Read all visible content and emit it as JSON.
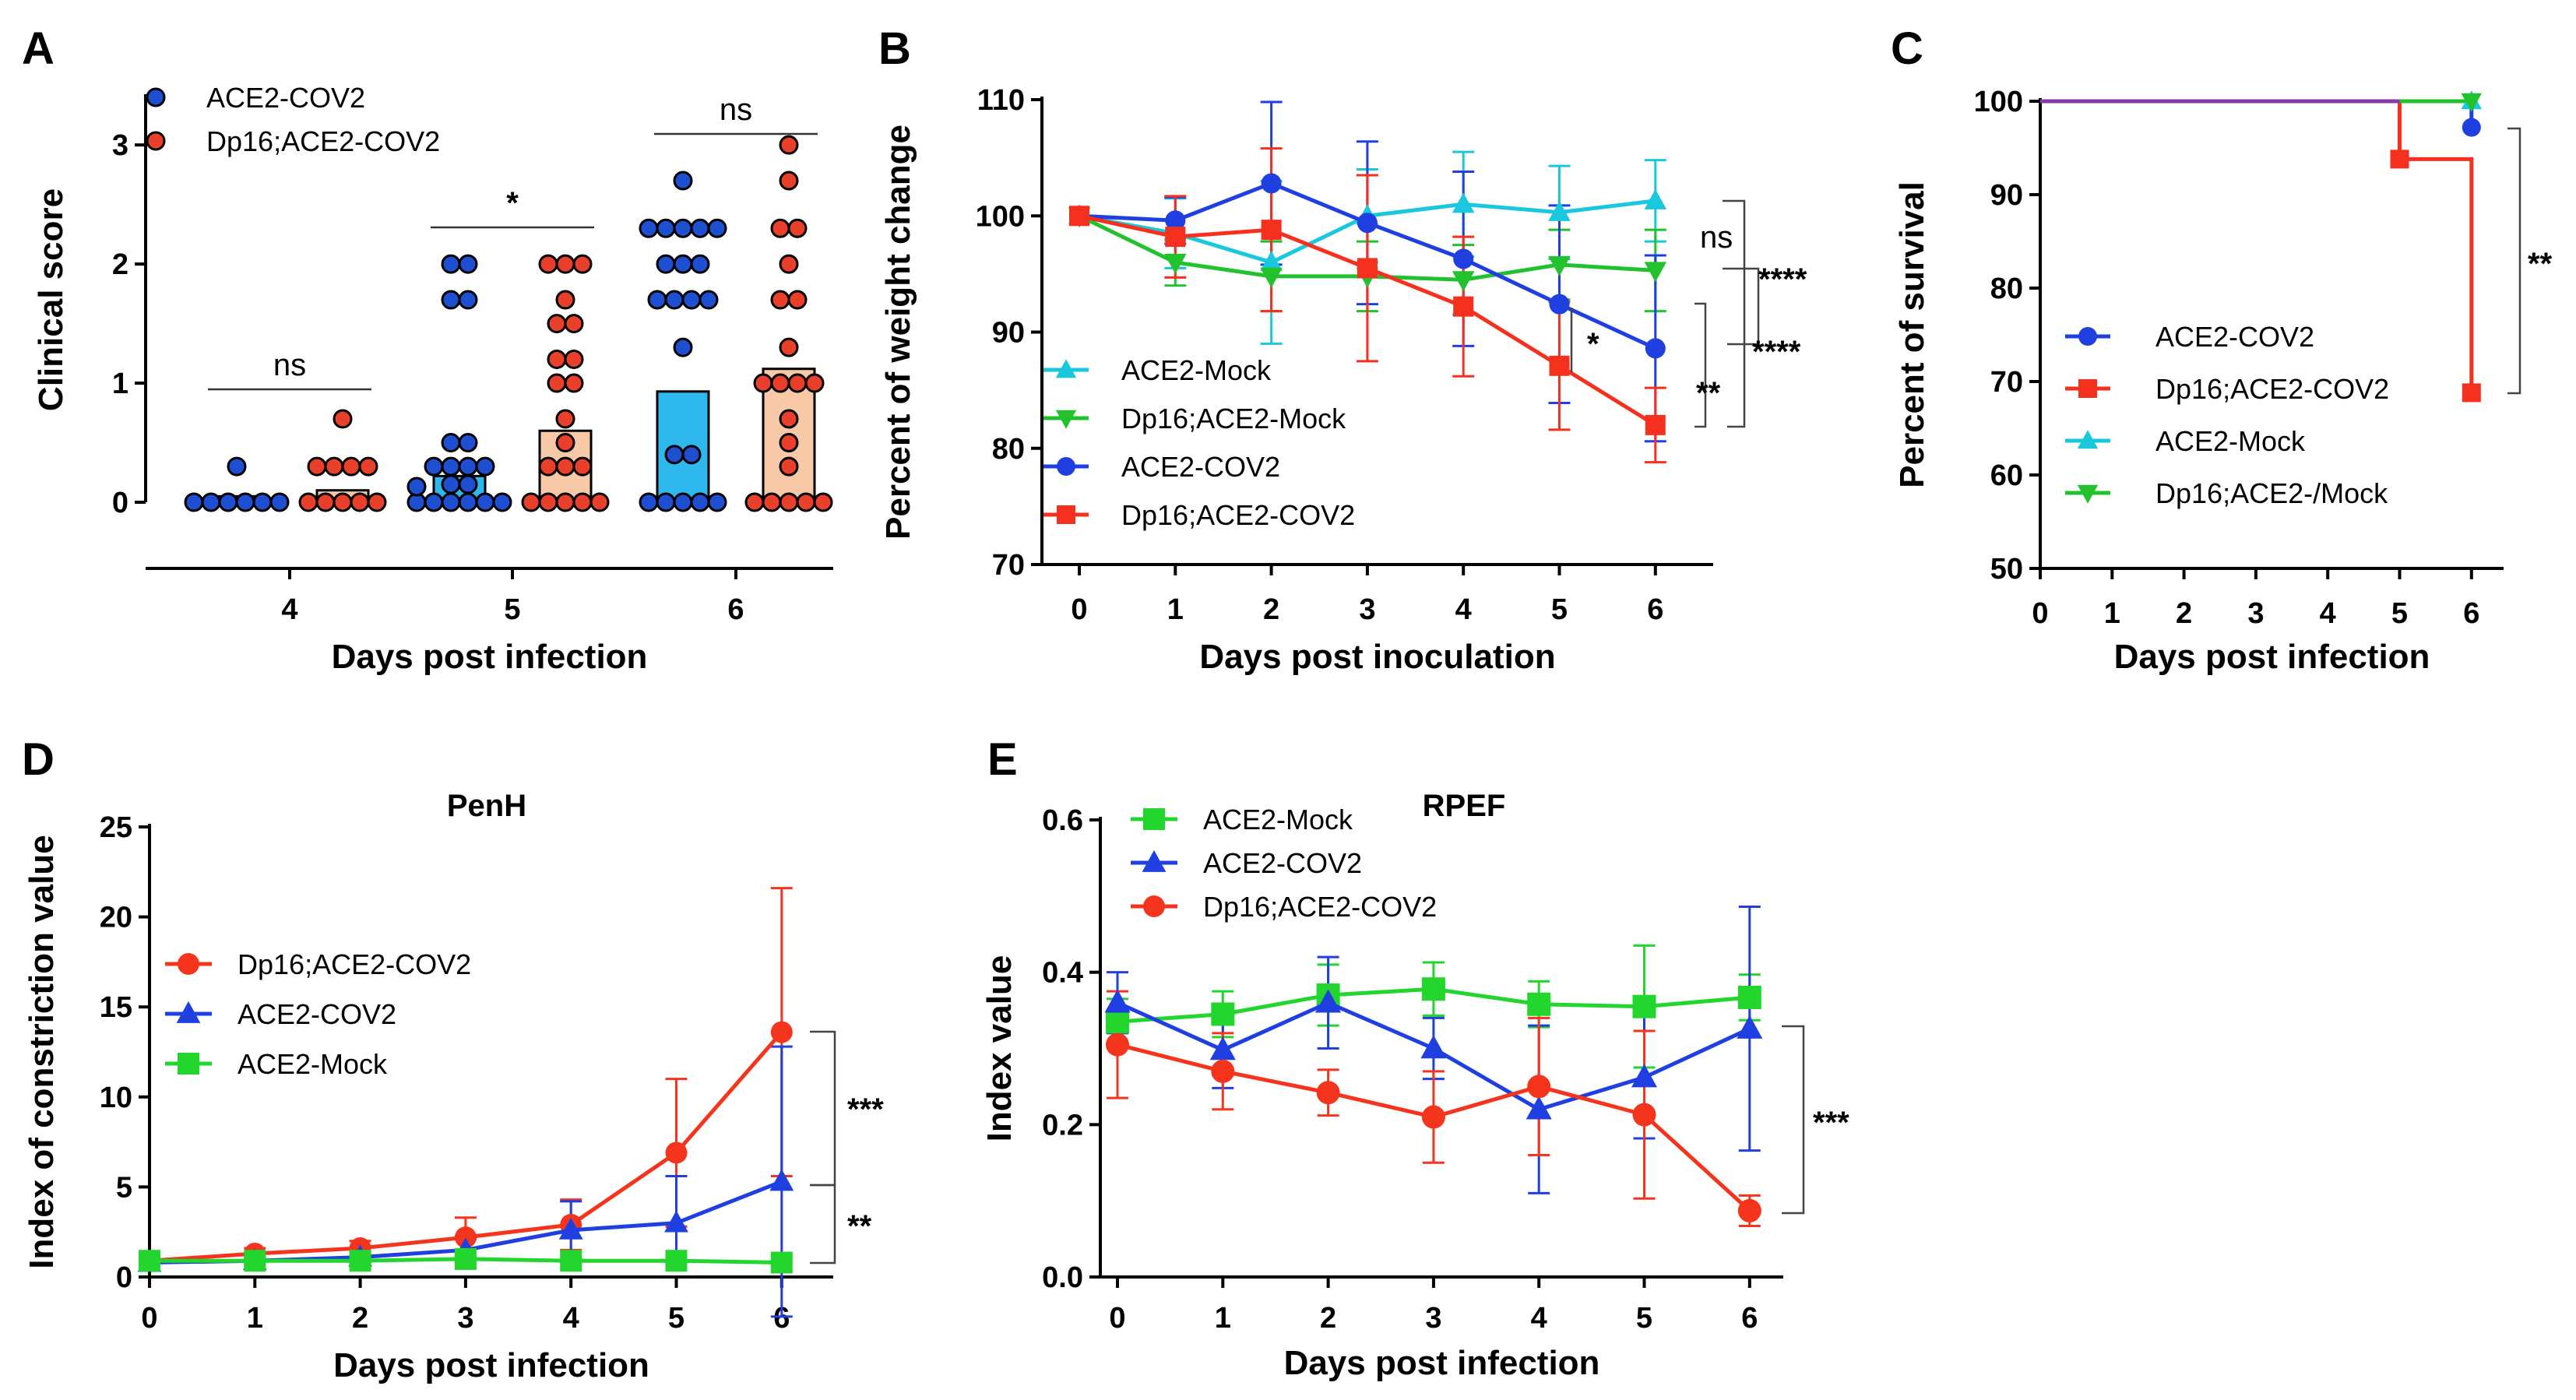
{
  "chart_data": [
    {
      "panel": "A",
      "type": "scatter",
      "title": "",
      "xlabel": "Days post infection",
      "ylabel": "Clinical score",
      "categories": [
        "4",
        "5",
        "6"
      ],
      "ylim": [
        0,
        3.4
      ],
      "yticks": [
        "0",
        "1",
        "2",
        "3"
      ],
      "series": [
        {
          "name": "ACE2-COV2",
          "color": "#1f4fd1",
          "bar_color": "#2fb8ee",
          "bar_means": [
            0.05,
            0.22,
            0.93
          ],
          "points": [
            [
              0,
              0,
              0,
              0,
              0,
              0,
              0.3
            ],
            [
              0,
              0,
              0,
              0,
              0,
              0,
              0,
              0.15,
              0.15,
              0.3,
              0.3,
              0.3,
              0.3,
              0.5,
              0.5,
              1.7,
              1.7,
              2.0,
              2.0
            ],
            [
              0,
              0,
              0,
              0,
              0,
              0.4,
              0.4,
              1.3,
              1.7,
              1.7,
              1.7,
              1.7,
              2.0,
              2.0,
              2.0,
              2.3,
              2.3,
              2.3,
              2.3,
              2.3,
              2.7
            ]
          ]
        },
        {
          "name": "Dp16;ACE2-COV2",
          "color": "#e8402a",
          "bar_color": "#f7c9a6",
          "bar_means": [
            0.1,
            0.6,
            1.12
          ],
          "points": [
            [
              0,
              0,
              0,
              0,
              0,
              0.3,
              0.3,
              0.3,
              0.3,
              0.7
            ],
            [
              0,
              0,
              0,
              0,
              0,
              0.3,
              0.3,
              0.3,
              0.5,
              0.7,
              1.0,
              1.0,
              1.2,
              1.2,
              1.5,
              1.5,
              1.7,
              2.0,
              2.0,
              2.0
            ],
            [
              0,
              0,
              0,
              0,
              0,
              0.3,
              0.5,
              0.7,
              1.0,
              1.0,
              1.0,
              1.0,
              1.3,
              1.7,
              1.7,
              2.0,
              2.3,
              2.3,
              2.7,
              3.0
            ]
          ]
        }
      ],
      "significance": [
        "ns",
        "*",
        "ns"
      ]
    },
    {
      "panel": "B",
      "type": "line",
      "title": "",
      "xlabel": "Days post inoculation",
      "ylabel": "Percent of weight change",
      "x": [
        0,
        1,
        2,
        3,
        4,
        5,
        6
      ],
      "ylim": [
        70,
        110
      ],
      "yticks": [
        "70",
        "80",
        "90",
        "100",
        "110"
      ],
      "series": [
        {
          "name": "ACE2-Mock",
          "color": "#19c8dc",
          "marker": "triangle-up",
          "values": [
            100,
            98.5,
            96,
            100,
            101,
            100.3,
            101.3
          ],
          "errors": [
            0,
            3,
            7,
            4,
            4.5,
            4,
            3.5
          ]
        },
        {
          "name": "Dp16;ACE2-Mock",
          "color": "#22c22e",
          "marker": "triangle-down",
          "values": [
            100,
            96,
            94.8,
            94.8,
            94.5,
            95.8,
            95.3
          ],
          "errors": [
            0,
            2,
            3,
            3,
            3,
            3,
            3.5
          ]
        },
        {
          "name": "ACE2-COV2",
          "color": "#1f3fe0",
          "marker": "circle",
          "values": [
            100,
            99.6,
            102.8,
            99.4,
            96.3,
            92.4,
            88.6
          ],
          "errors": [
            0,
            2,
            7,
            7,
            7.5,
            8.5,
            8
          ]
        },
        {
          "name": "Dp16;ACE2-COV2",
          "color": "#f5301e",
          "marker": "square",
          "values": [
            100,
            98.2,
            98.8,
            95.5,
            92.2,
            87.1,
            82
          ],
          "errors": [
            0,
            3.5,
            7,
            8,
            6,
            5.5,
            3.2
          ]
        }
      ],
      "significance": [
        "ns",
        "****",
        "*",
        "****",
        "**"
      ]
    },
    {
      "panel": "C",
      "type": "line",
      "title": "",
      "xlabel": "Days post infection",
      "ylabel": "Percent of survival",
      "x": [
        0,
        1,
        2,
        3,
        4,
        5,
        6
      ],
      "ylim": [
        50,
        100
      ],
      "yticks": [
        "50",
        "60",
        "70",
        "80",
        "90",
        "100"
      ],
      "series": [
        {
          "name": "ACE2-COV2",
          "color": "#1f3fe0",
          "marker": "circle",
          "steps": [
            [
              0,
              100
            ],
            [
              6,
              97.2
            ]
          ]
        },
        {
          "name": "Dp16;ACE2-COV2",
          "color": "#f5301e",
          "marker": "square",
          "steps": [
            [
              0,
              100
            ],
            [
              5,
              93.8
            ],
            [
              6,
              68.8
            ]
          ]
        },
        {
          "name": "ACE2-Mock",
          "color": "#19c8dc",
          "marker": "triangle-up",
          "steps": [
            [
              0,
              100
            ],
            [
              6,
              100
            ]
          ]
        },
        {
          "name": "Dp16;ACE2-/Mock",
          "color": "#22c22e",
          "marker": "triangle-down",
          "steps": [
            [
              0,
              100
            ],
            [
              6,
              100
            ]
          ]
        }
      ],
      "significance": [
        "**"
      ]
    },
    {
      "panel": "D",
      "type": "line",
      "title": "PenH",
      "xlabel": "Days post infection",
      "ylabel": "Index of constriction value",
      "x": [
        0,
        1,
        2,
        3,
        4,
        5,
        6
      ],
      "ylim": [
        0,
        25
      ],
      "yticks": [
        "0",
        "5",
        "10",
        "15",
        "20",
        "25"
      ],
      "series": [
        {
          "name": "Dp16;ACE2-COV2",
          "color": "#f5341e",
          "marker": "circle",
          "values": [
            0.9,
            1.3,
            1.6,
            2.2,
            2.9,
            6.9,
            13.6
          ],
          "errors": [
            0.2,
            0.3,
            0.4,
            1.1,
            1.4,
            4.1,
            8
          ]
        },
        {
          "name": "ACE2-COV2",
          "color": "#1f3fe0",
          "marker": "triangle-up",
          "values": [
            0.8,
            0.9,
            1.1,
            1.5,
            2.6,
            3,
            5.3
          ],
          "errors": [
            0.2,
            0.2,
            0.3,
            0.6,
            1.6,
            2.6,
            7.5
          ]
        },
        {
          "name": "ACE2-Mock",
          "color": "#22d62e",
          "marker": "square",
          "values": [
            0.9,
            0.9,
            0.9,
            1,
            0.9,
            0.9,
            0.8
          ],
          "errors": [
            0.1,
            0.1,
            0.1,
            0.1,
            0.1,
            0.1,
            0.1
          ]
        }
      ],
      "significance": [
        "***",
        "**"
      ]
    },
    {
      "panel": "E",
      "type": "line",
      "title": "RPEF",
      "xlabel": "Days post infection",
      "ylabel": "Index value",
      "x": [
        0,
        1,
        2,
        3,
        4,
        5,
        6
      ],
      "ylim": [
        0,
        0.6
      ],
      "yticks": [
        "0.0",
        "0.2",
        "0.4",
        "0.6"
      ],
      "series": [
        {
          "name": "ACE2-Mock",
          "color": "#22d62e",
          "marker": "square",
          "values": [
            0.335,
            0.345,
            0.37,
            0.378,
            0.358,
            0.355,
            0.367
          ],
          "errors": [
            0.03,
            0.03,
            0.04,
            0.035,
            0.03,
            0.08,
            0.03
          ]
        },
        {
          "name": "ACE2-COV2",
          "color": "#1f3fe0",
          "marker": "triangle-up",
          "values": [
            0.36,
            0.298,
            0.36,
            0.3,
            0.22,
            0.262,
            0.326
          ],
          "errors": [
            0.04,
            0.05,
            0.06,
            0.04,
            0.11,
            0.08,
            0.16
          ]
        },
        {
          "name": "Dp16;ACE2-COV2",
          "color": "#f5341e",
          "marker": "circle",
          "values": [
            0.305,
            0.27,
            0.242,
            0.21,
            0.25,
            0.213,
            0.087
          ],
          "errors": [
            0.07,
            0.05,
            0.03,
            0.06,
            0.09,
            0.11,
            0.02
          ]
        }
      ],
      "significance": [
        "***"
      ]
    }
  ]
}
